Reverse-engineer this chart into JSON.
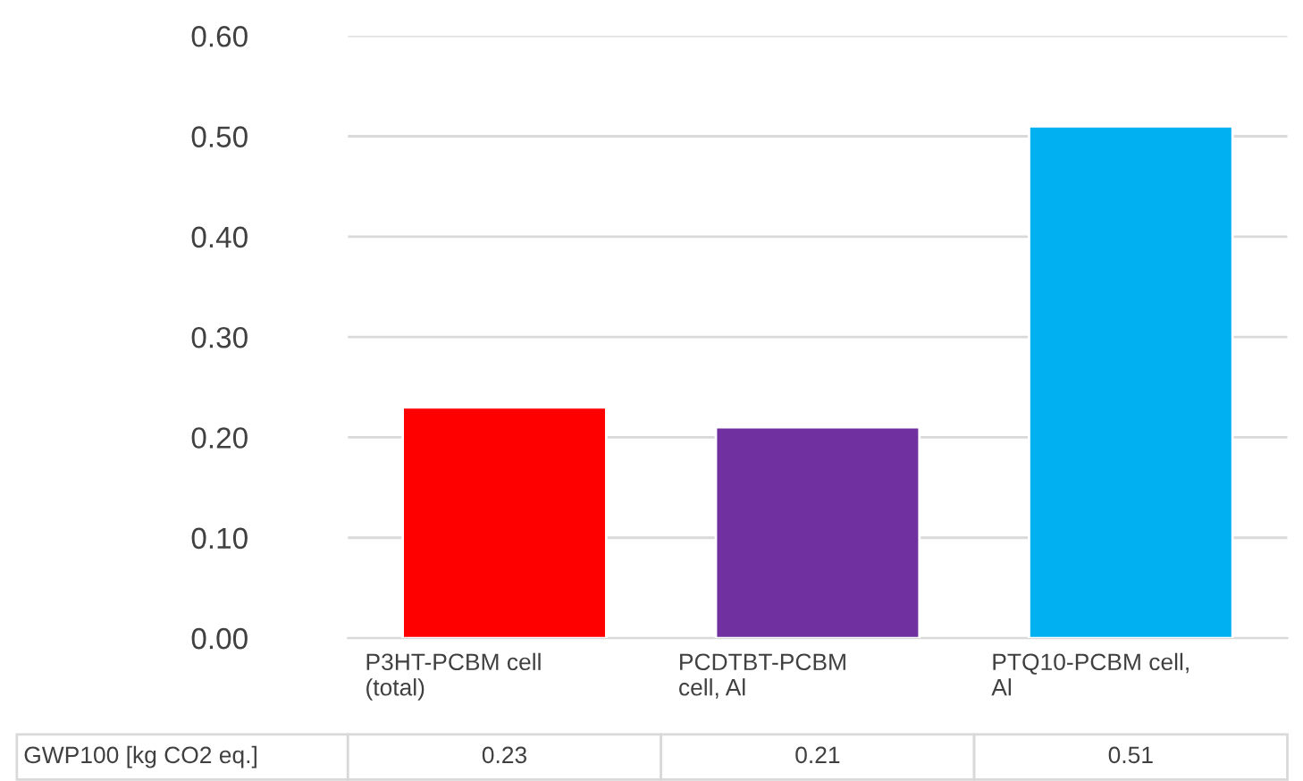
{
  "chart_data": {
    "type": "bar",
    "categories": [
      "P3HT-PCBM cell (total)",
      "PCDTBT-PCBM cell, Al",
      "PTQ10-PCBM cell, Al"
    ],
    "series": [
      {
        "name": "GWP100 [kg CO2 eq.]",
        "colors": [
          "#ff0000",
          "#7030a0",
          "#00b0f0"
        ],
        "values": [
          0.23,
          0.21,
          0.51
        ]
      }
    ],
    "ylim": [
      0,
      0.6
    ],
    "yticks": [
      {
        "value": 0,
        "label": "0.00"
      },
      {
        "value": 0.1,
        "label": "0.10"
      },
      {
        "value": 0.2,
        "label": "0.20"
      },
      {
        "value": 0.3,
        "label": "0.30"
      },
      {
        "value": 0.4,
        "label": "0.40"
      },
      {
        "value": 0.5,
        "label": "0.50"
      },
      {
        "value": 0.6,
        "label": "0.60"
      }
    ],
    "grid": "y",
    "data_labels": true
  }
}
